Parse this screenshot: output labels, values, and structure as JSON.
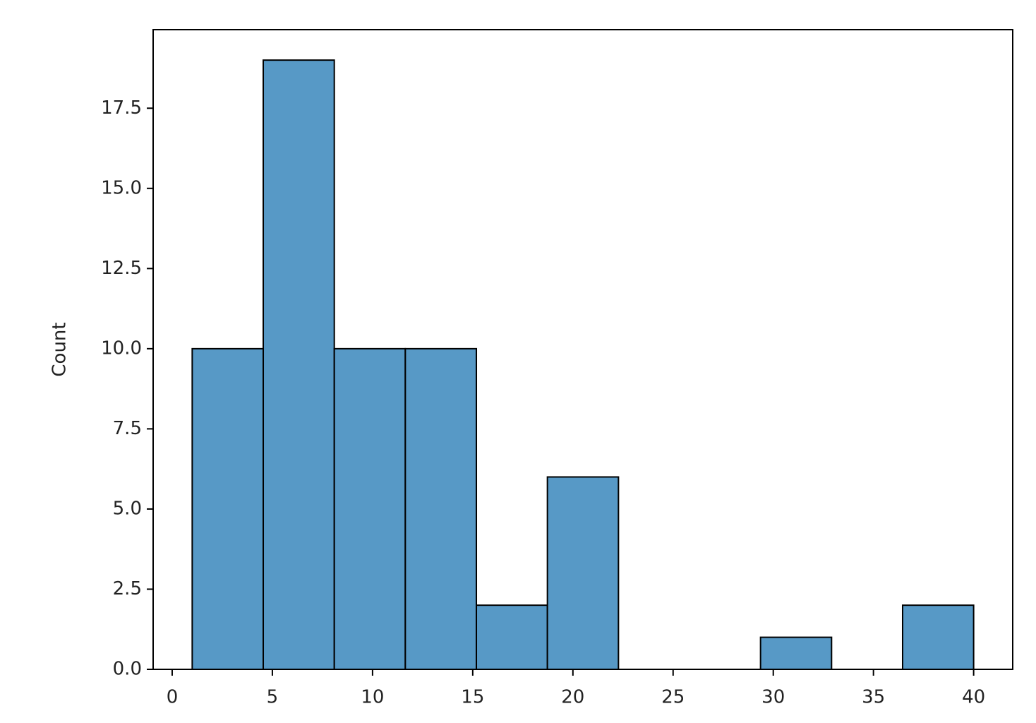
{
  "chart_data": {
    "type": "histogram",
    "y_label": "Count",
    "bins": [
      1,
      4.545,
      8.091,
      11.636,
      15.182,
      18.727,
      22.273,
      25.818,
      29.364,
      32.909,
      36.455,
      40
    ],
    "counts": [
      10,
      19,
      10,
      10,
      2,
      6,
      0,
      0,
      1,
      0,
      2
    ],
    "color": "#5799c6",
    "xlim": [
      -0.95,
      41.95
    ],
    "xticks": [
      0,
      5,
      10,
      15,
      20,
      25,
      30,
      35,
      40
    ],
    "ylim": [
      0,
      19.95
    ],
    "yticks": [
      {
        "value": 0,
        "label": "0.0"
      },
      2.5,
      {
        "value": 5,
        "label": "5.0"
      },
      7.5,
      {
        "value": 10,
        "label": "10.0"
      },
      12.5,
      {
        "value": 15,
        "label": "15.0"
      },
      17.5
    ],
    "grid": false
  }
}
